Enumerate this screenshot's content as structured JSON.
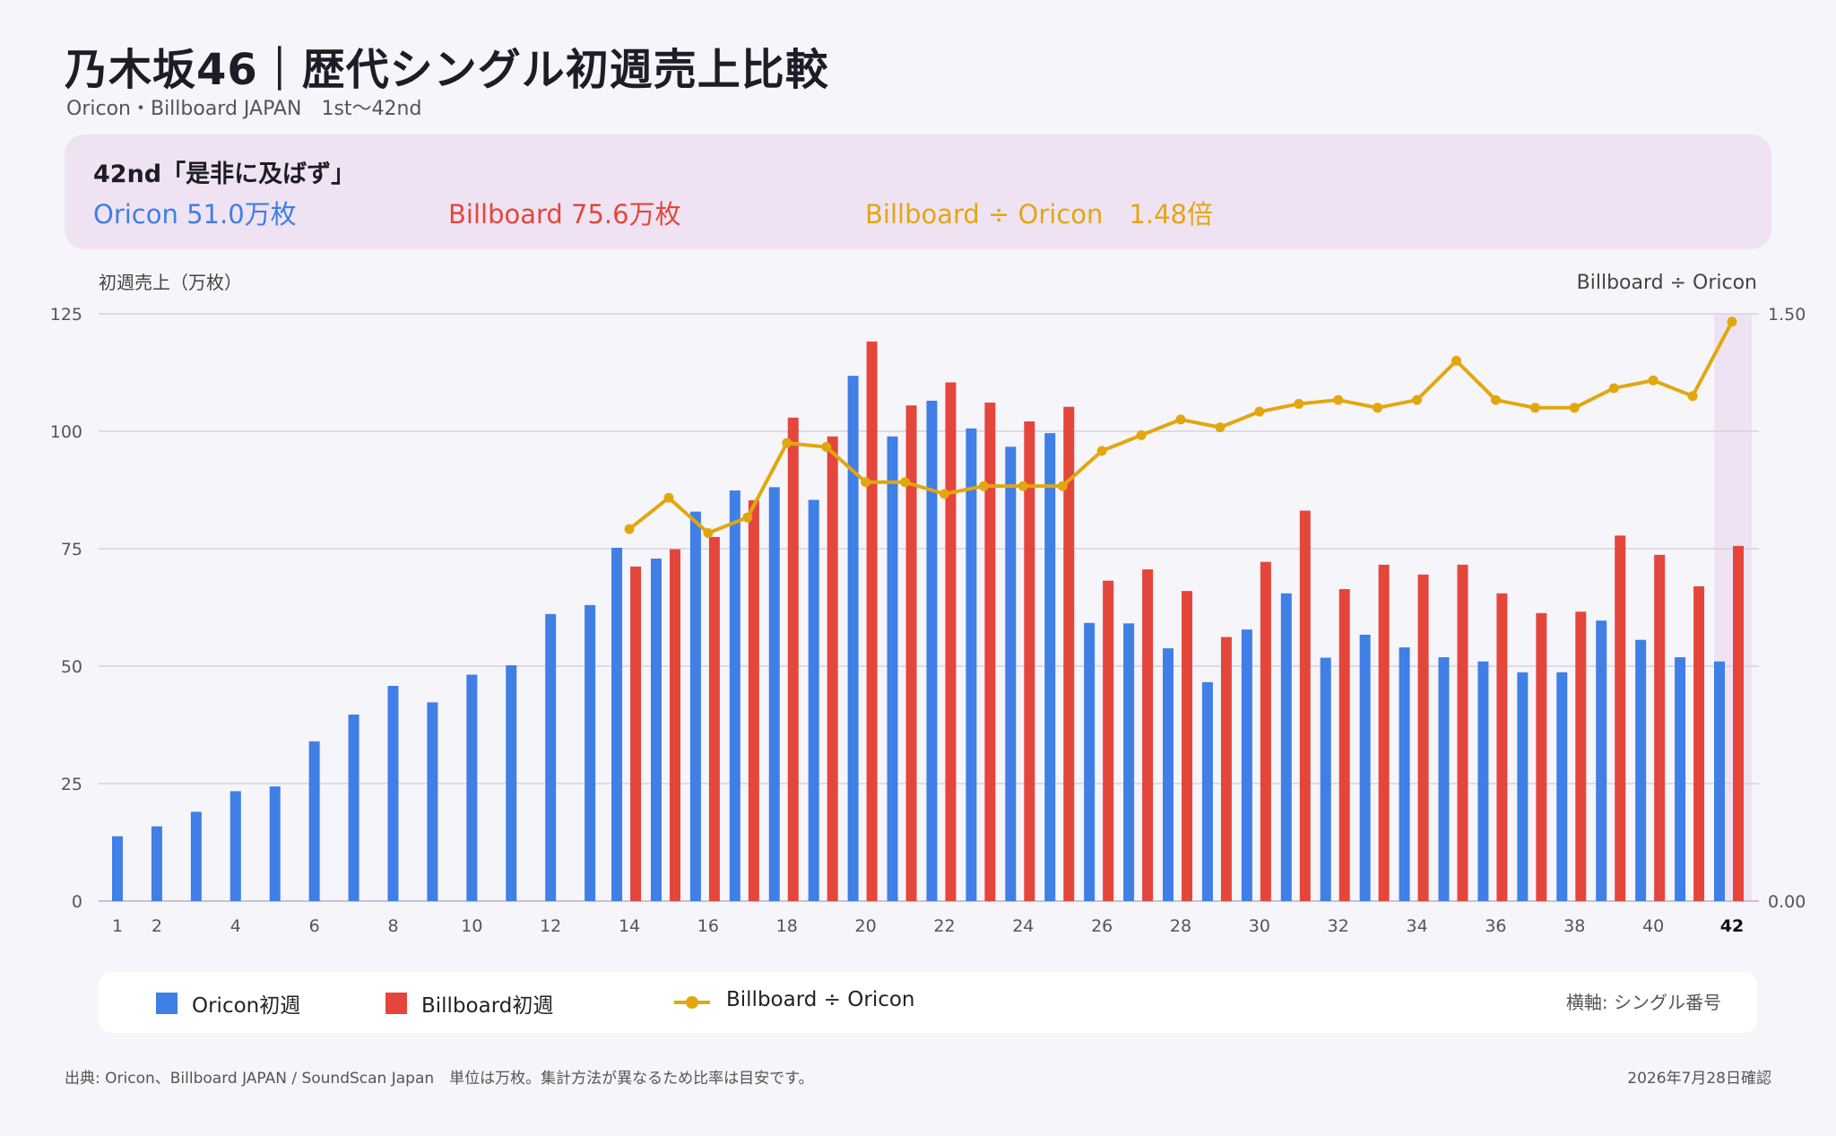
{
  "header": {
    "title": "乃木坂46｜歴代シングル初週売上比較",
    "subtitle": "Oricon・Billboard JAPAN　1st〜42nd"
  },
  "summary": {
    "heading": "42nd「是非に及ばず」",
    "oricon": "Oricon 51.0万枚",
    "billboard": "Billboard 75.6万枚",
    "ratio": "Billboard ÷ Oricon　1.48倍"
  },
  "colors": {
    "oricon": "#3f7fe6",
    "billboard": "#e5463c",
    "ratio": "#e2a70f",
    "highlight": "#efe3f3"
  },
  "chart_data": {
    "type": "bar",
    "ylabel": "初週売上（万枚）",
    "y2label": "Billboard ÷ Oricon",
    "ylim": [
      0,
      125
    ],
    "y2lim": [
      0,
      1.5
    ],
    "yticks": [
      "0",
      "25",
      "50",
      "75",
      "100",
      "125"
    ],
    "y2ticks": [
      "0.00",
      "1.50"
    ],
    "xticks": [
      1,
      2,
      4,
      6,
      8,
      10,
      12,
      14,
      16,
      18,
      20,
      22,
      24,
      26,
      28,
      30,
      32,
      34,
      36,
      38,
      40,
      42
    ],
    "highlight_x": 42,
    "grid": true,
    "x": [
      1,
      2,
      3,
      4,
      5,
      6,
      7,
      8,
      9,
      10,
      11,
      12,
      13,
      14,
      15,
      16,
      17,
      18,
      19,
      20,
      21,
      22,
      23,
      24,
      25,
      26,
      27,
      28,
      29,
      30,
      31,
      32,
      33,
      34,
      35,
      36,
      37,
      38,
      39,
      40,
      41,
      42
    ],
    "series": [
      {
        "name": "Oricon初週",
        "type": "bar",
        "values": [
          13.8,
          15.9,
          19.0,
          23.4,
          24.4,
          34.0,
          39.7,
          45.8,
          42.3,
          48.2,
          50.2,
          61.1,
          63.0,
          75.2,
          72.9,
          82.9,
          87.4,
          88.1,
          85.4,
          111.8,
          98.9,
          106.5,
          100.6,
          96.7,
          99.6,
          59.2,
          59.1,
          53.8,
          46.6,
          57.8,
          65.5,
          51.8,
          56.7,
          54.0,
          51.9,
          51.0,
          48.7,
          48.7,
          59.7,
          55.6,
          51.9,
          51.0
        ]
      },
      {
        "name": "Billboard初週",
        "type": "bar",
        "values": [
          null,
          null,
          null,
          null,
          null,
          null,
          null,
          null,
          null,
          null,
          null,
          null,
          null,
          71.2,
          74.9,
          77.5,
          85.3,
          102.9,
          98.9,
          119.1,
          105.5,
          110.4,
          106.1,
          102.1,
          105.2,
          68.2,
          70.6,
          66.0,
          56.2,
          72.2,
          83.1,
          66.4,
          71.6,
          69.5,
          71.6,
          65.5,
          61.3,
          61.6,
          77.8,
          73.7,
          67.0,
          75.6
        ]
      },
      {
        "name": "Billboard ÷ Oricon",
        "type": "line",
        "axis": "right",
        "values": [
          null,
          null,
          null,
          null,
          null,
          null,
          null,
          null,
          null,
          null,
          null,
          null,
          null,
          0.95,
          1.03,
          0.94,
          0.98,
          1.17,
          1.16,
          1.07,
          1.07,
          1.04,
          1.06,
          1.06,
          1.06,
          1.15,
          1.19,
          1.23,
          1.21,
          1.25,
          1.27,
          1.28,
          1.26,
          1.28,
          1.38,
          1.28,
          1.26,
          1.26,
          1.31,
          1.33,
          1.29,
          1.48
        ]
      }
    ]
  },
  "legend": {
    "oricon": "Oricon初週",
    "billboard": "Billboard初週",
    "ratio": "Billboard ÷ Oricon",
    "axis_note": "横軸: シングル番号"
  },
  "footer": {
    "source": "出典: Oricon、Billboard JAPAN / SoundScan Japan　単位は万枚。集計方法が異なるため比率は目安です。",
    "date": "2026年7月28日確認"
  }
}
